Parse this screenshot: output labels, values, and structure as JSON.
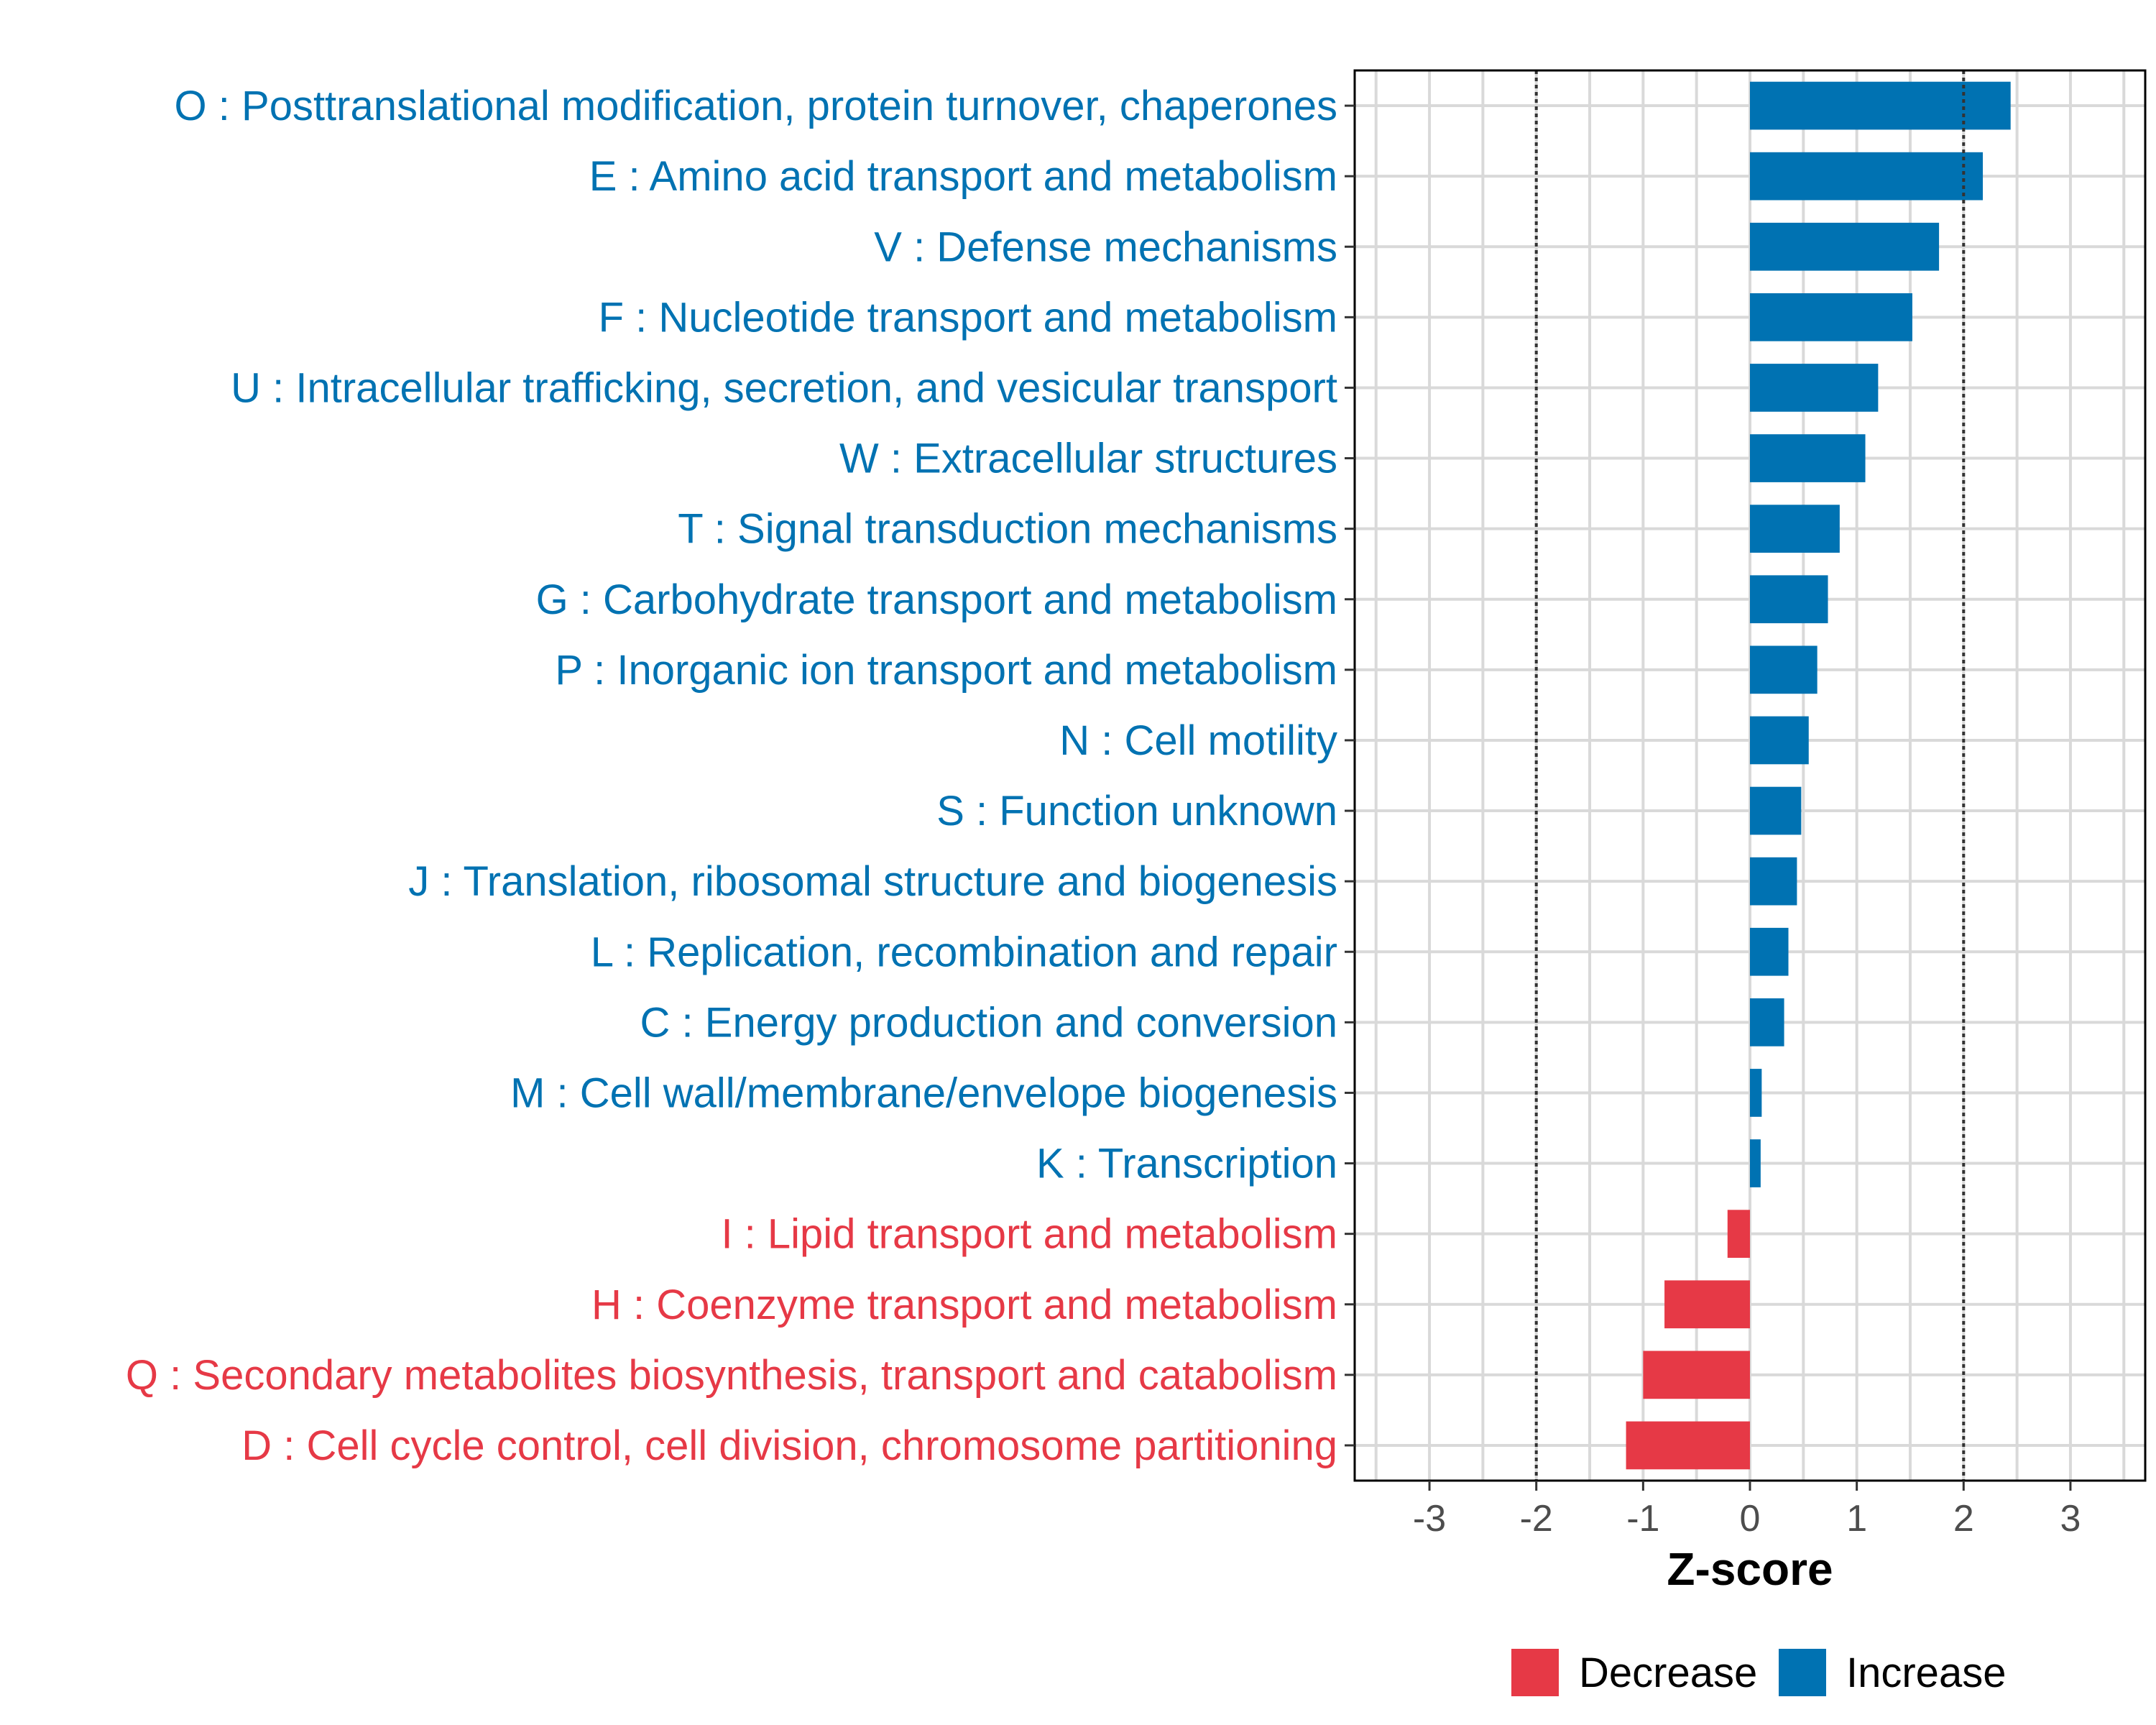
{
  "chart_data": {
    "type": "bar",
    "orientation": "horizontal",
    "xlabel": "Z-score",
    "xlim": [
      -3.7,
      3.7
    ],
    "xticks": [
      -3,
      -2,
      -1,
      0,
      1,
      2,
      3
    ],
    "xtick_labels": [
      "-3",
      "-2",
      "-1",
      "0",
      "1",
      "2",
      "3"
    ],
    "reference_lines": [
      -2,
      2
    ],
    "grid": true,
    "categories": [
      "O : Posttranslational modification, protein turnover, chaperones",
      "E : Amino acid transport and metabolism",
      "V : Defense mechanisms",
      "F : Nucleotide transport and metabolism",
      "U : Intracellular trafficking, secretion, and vesicular transport",
      "W : Extracellular structures",
      "T : Signal transduction mechanisms",
      "G : Carbohydrate transport and metabolism",
      "P : Inorganic ion transport and metabolism",
      "N : Cell motility",
      "S : Function unknown",
      "J : Translation, ribosomal structure and biogenesis",
      "L : Replication, recombination and repair",
      "C : Energy production and conversion",
      "M : Cell wall/membrane/envelope biogenesis",
      "K : Transcription",
      "I : Lipid transport and metabolism",
      "H : Coenzyme transport and metabolism",
      "Q : Secondary metabolites biosynthesis, transport and catabolism",
      "D : Cell cycle control, cell division, chromosome partitioning"
    ],
    "values": [
      2.44,
      2.18,
      1.77,
      1.52,
      1.2,
      1.08,
      0.84,
      0.73,
      0.63,
      0.55,
      0.48,
      0.44,
      0.36,
      0.32,
      0.11,
      0.1,
      -0.21,
      -0.8,
      -1.0,
      -1.16
    ],
    "groups": [
      "Increase",
      "Increase",
      "Increase",
      "Increase",
      "Increase",
      "Increase",
      "Increase",
      "Increase",
      "Increase",
      "Increase",
      "Increase",
      "Increase",
      "Increase",
      "Increase",
      "Increase",
      "Increase",
      "Decrease",
      "Decrease",
      "Decrease",
      "Decrease"
    ],
    "legend": {
      "position": "bottom",
      "entries": [
        {
          "label": "Decrease",
          "color": "#E63946"
        },
        {
          "label": "Increase",
          "color": "#0072B2"
        }
      ]
    },
    "colors": {
      "Increase": "#0072B2",
      "Decrease": "#E63946"
    }
  }
}
